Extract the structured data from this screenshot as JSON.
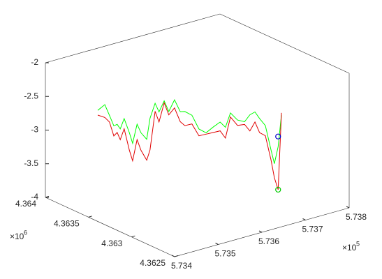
{
  "chart_data": {
    "type": "line3d",
    "xlim": [
      573400,
      573800
    ],
    "ylim": [
      4362500,
      4364000
    ],
    "zlim": [
      -4,
      -2
    ],
    "xticks": [
      {
        "value": 573400,
        "label": "5.734"
      },
      {
        "value": 573500,
        "label": "5.735"
      },
      {
        "value": 573600,
        "label": "5.736"
      },
      {
        "value": 573700,
        "label": "5.737"
      },
      {
        "value": 573800,
        "label": "5.738"
      }
    ],
    "yticks": [
      {
        "value": 4362500,
        "label": "4.3625"
      },
      {
        "value": 4363000,
        "label": "4.363"
      },
      {
        "value": 4363500,
        "label": "4.3635"
      },
      {
        "value": 4364000,
        "label": "4.364"
      }
    ],
    "zticks": [
      -4,
      -3.5,
      -3,
      -2.5,
      -2
    ],
    "x_multiplier": {
      "base": "×10",
      "power": "5"
    },
    "y_multiplier": {
      "base": "×10",
      "power": "6"
    },
    "x": [
      573446,
      573457,
      573464,
      573471,
      573476,
      573481,
      573487,
      573495,
      573500,
      573507,
      573513,
      573522,
      573527,
      573535,
      573541,
      573549,
      573556,
      573565,
      573574,
      573581,
      573592,
      573603,
      573614,
      573625,
      573636,
      573644,
      573652,
      573663,
      573674,
      573682,
      573690,
      573697,
      573706,
      573715,
      573720,
      573726,
      573731
    ],
    "y": [
      4363625,
      4363599,
      4363581,
      4363565,
      4363552,
      4363541,
      4363526,
      4363507,
      4363494,
      4363478,
      4363463,
      4363442,
      4363429,
      4363410,
      4363395,
      4363376,
      4363358,
      4363337,
      4363316,
      4363298,
      4363272,
      4363246,
      4363219,
      4363193,
      4363167,
      4363146,
      4363128,
      4363102,
      4363076,
      4363055,
      4363036,
      4363018,
      4362997,
      4362976,
      4362963,
      4362950,
      4362937
    ],
    "series": [
      {
        "color": "#00ff00",
        "values": [
          -2.57,
          -2.49,
          -2.65,
          -2.81,
          -2.79,
          -2.86,
          -2.71,
          -2.92,
          -3.08,
          -2.8,
          -2.93,
          -3.03,
          -2.72,
          -2.5,
          -2.63,
          -2.47,
          -2.63,
          -2.46,
          -2.64,
          -2.64,
          -2.7,
          -2.91,
          -2.97,
          -2.89,
          -2.82,
          -2.9,
          -2.69,
          -2.8,
          -2.83,
          -2.73,
          -2.69,
          -2.79,
          -2.9,
          -3.27,
          -3.47,
          -3.22,
          -2.75
        ]
      },
      {
        "color": "#e00000",
        "values": [
          -2.64,
          -2.68,
          -2.75,
          -2.96,
          -2.91,
          -3.02,
          -2.86,
          -3.18,
          -3.34,
          -3.03,
          -3.19,
          -3.34,
          -3.19,
          -2.62,
          -2.78,
          -2.5,
          -2.68,
          -2.58,
          -2.79,
          -2.85,
          -2.83,
          -3.01,
          -2.99,
          -2.97,
          -2.95,
          -3.06,
          -2.75,
          -2.88,
          -2.87,
          -2.97,
          -2.84,
          -3.0,
          -3.05,
          -3.42,
          -3.68,
          -3.86,
          -2.72
        ]
      }
    ],
    "markers": [
      {
        "x": 573726,
        "y": 4362950,
        "z": -3.86,
        "color": "#00cc00"
      },
      {
        "x": 573726,
        "y": 4362950,
        "z": -3.07,
        "color": "#0000cc"
      }
    ]
  }
}
